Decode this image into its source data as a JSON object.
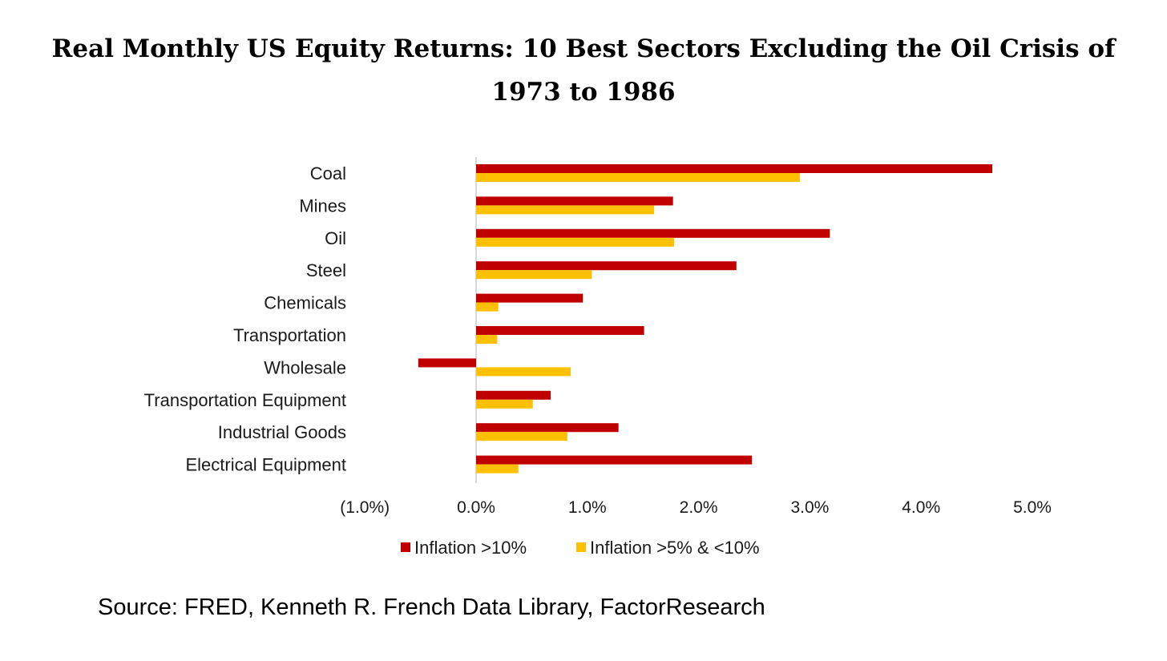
{
  "chart_data": {
    "type": "bar",
    "orientation": "horizontal",
    "title": "Real Monthly US Equity Returns: 10 Best Sectors Excluding the Oil Crisis of 1973 to 1986",
    "categories": [
      "Coal",
      "Mines",
      "Oil",
      "Steel",
      "Chemicals",
      "Transportation",
      "Wholesale",
      "Transportation Equipment",
      "Industrial Goods",
      "Electrical Equipment"
    ],
    "series": [
      {
        "name": "Inflation >10%",
        "color": "#c00000",
        "values": [
          4.64,
          1.77,
          3.18,
          2.34,
          0.96,
          1.51,
          -0.52,
          0.67,
          1.28,
          2.48
        ]
      },
      {
        "name": "Inflation >5% & <10%",
        "color": "#ffc000",
        "values": [
          2.91,
          1.6,
          1.78,
          1.04,
          0.2,
          0.19,
          0.85,
          0.51,
          0.82,
          0.38
        ]
      }
    ],
    "xlim": [
      -1.0,
      5.0
    ],
    "ticks": [
      -1,
      0,
      1,
      2,
      3,
      4,
      5
    ],
    "tick_labels": [
      "(1.0%)",
      "0.0%",
      "1.0%",
      "2.0%",
      "3.0%",
      "4.0%",
      "5.0%"
    ],
    "grid": false,
    "legend": "bottom"
  },
  "source": "Source: FRED, Kenneth R. French Data Library, FactorResearch"
}
